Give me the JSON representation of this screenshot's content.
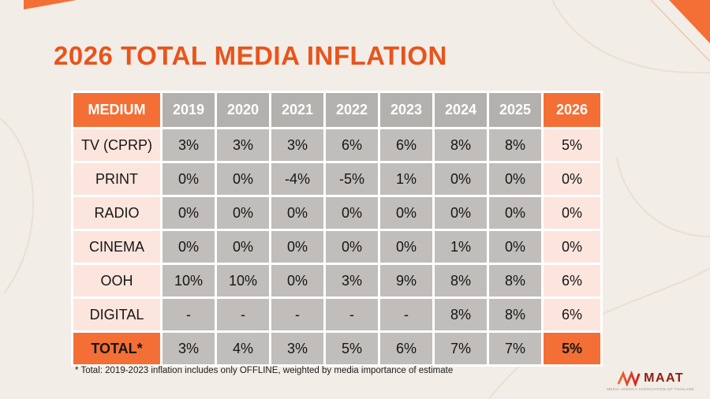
{
  "title": "2026 TOTAL MEDIA INFLATION",
  "chart_data": {
    "type": "table",
    "title": "2026 TOTAL MEDIA INFLATION",
    "row_header_label": "MEDIUM",
    "categories": [
      "2019",
      "2020",
      "2021",
      "2022",
      "2023",
      "2024",
      "2025",
      "2026"
    ],
    "series": [
      {
        "name": "TV (CPRP)",
        "values": [
          "3%",
          "3%",
          "3%",
          "6%",
          "6%",
          "8%",
          "8%",
          "5%"
        ]
      },
      {
        "name": "PRINT",
        "values": [
          "0%",
          "0%",
          "-4%",
          "-5%",
          "1%",
          "0%",
          "0%",
          "0%"
        ]
      },
      {
        "name": "RADIO",
        "values": [
          "0%",
          "0%",
          "0%",
          "0%",
          "0%",
          "0%",
          "0%",
          "0%"
        ]
      },
      {
        "name": "CINEMA",
        "values": [
          "0%",
          "0%",
          "0%",
          "0%",
          "0%",
          "1%",
          "0%",
          "0%"
        ]
      },
      {
        "name": "OOH",
        "values": [
          "10%",
          "10%",
          "0%",
          "3%",
          "9%",
          "8%",
          "8%",
          "6%"
        ]
      },
      {
        "name": "DIGITAL",
        "values": [
          "-",
          "-",
          "-",
          "-",
          "-",
          "8%",
          "8%",
          "6%"
        ]
      },
      {
        "name": "TOTAL*",
        "values": [
          "3%",
          "4%",
          "3%",
          "5%",
          "6%",
          "7%",
          "7%",
          "5%"
        ],
        "is_total": true
      }
    ],
    "highlight_column": "2026",
    "footnote": "* Total: 2019-2023 inflation includes only OFFLINE, weighted by media importance of estimate"
  },
  "footnote": "* Total: 2019-2023 inflation includes only OFFLINE, weighted by media importance of estimate",
  "logo": {
    "name": "MAAT",
    "caption": "MEDIA AGENCY ASSOCIATION OF THAILAND"
  },
  "colors": {
    "accent_orange": "#F36F35",
    "header_gray": "#B3B1AE",
    "cell_gray": "#C0BDBA",
    "light_pink": "#FBE5DD",
    "background": "#F2EDE6",
    "title": "#E8541D"
  }
}
